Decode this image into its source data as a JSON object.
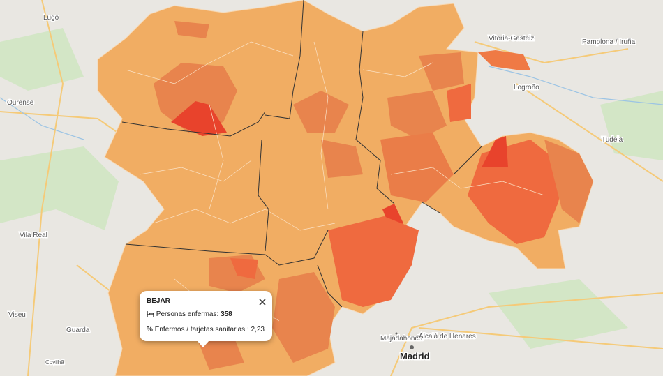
{
  "places": [
    "Lugo",
    "Ourense",
    "Vila Real",
    "Viseu",
    "Guarda",
    "Covilhã",
    "Vitoria-Gasteiz",
    "Pamplona / Iruña",
    "Logroño",
    "Tudela",
    "Majadahonda",
    "Alcalá de Henares",
    "Madrid"
  ],
  "popup": {
    "title": "BEJAR",
    "rows": [
      {
        "label": "Personas enfermas:",
        "value": 358
      },
      {
        "icon": "%",
        "label": "Enfermos / tarjetas sanitarias :",
        "value": "2,23"
      }
    ]
  }
}
